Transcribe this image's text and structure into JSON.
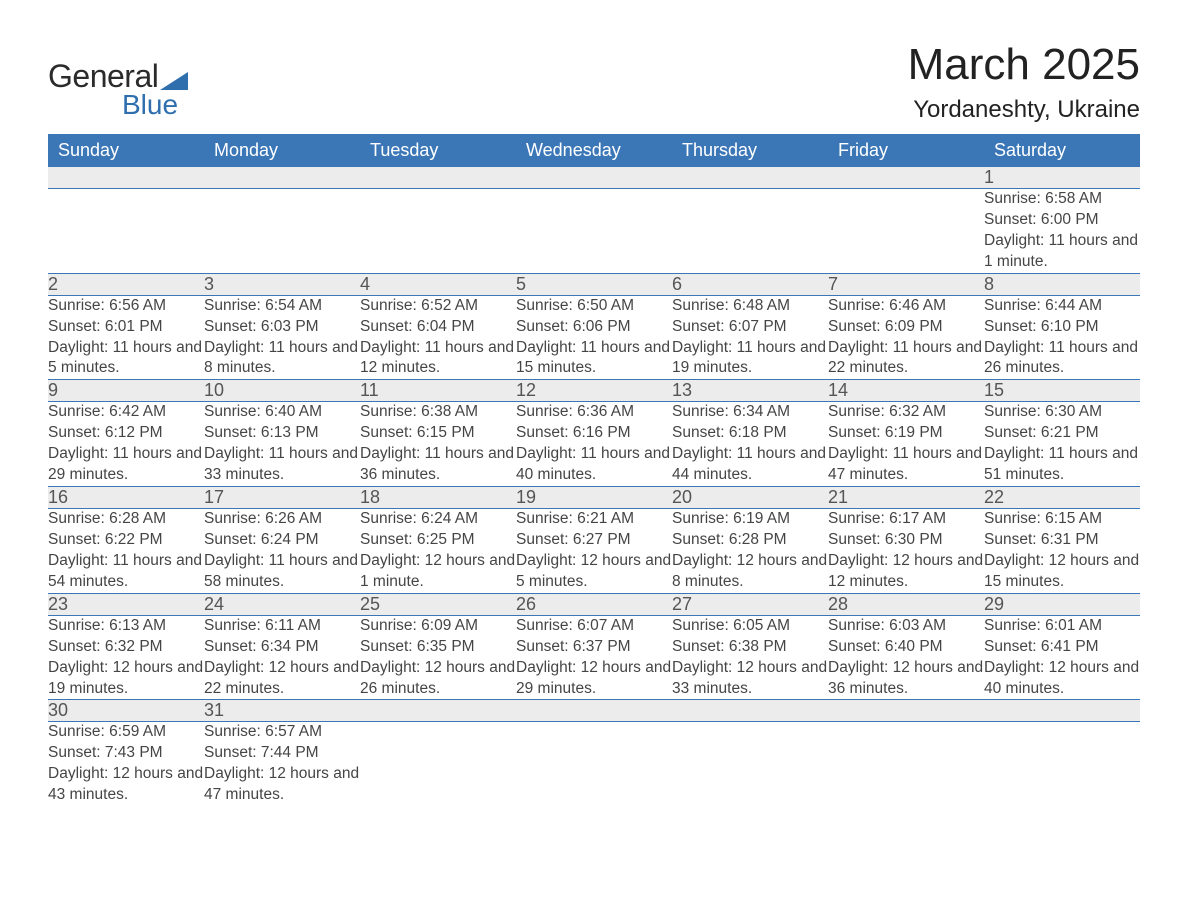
{
  "brand": {
    "general": "General",
    "blue": "Blue"
  },
  "title": "March 2025",
  "location": "Yordaneshty, Ukraine",
  "colors": {
    "header_bg": "#3b77b7",
    "header_text": "#ffffff",
    "daynum_bg": "#ececec",
    "row_divider": "#3b77b7",
    "body_text": "#454545",
    "logo_blue": "#2f6fae"
  },
  "layout": {
    "columns": 7,
    "weeks": 6,
    "font_family": "Arial",
    "title_fontsize": 44,
    "location_fontsize": 24,
    "weekday_fontsize": 18,
    "daynum_fontsize": 18,
    "detail_fontsize": 15.5
  },
  "weekdays": [
    "Sunday",
    "Monday",
    "Tuesday",
    "Wednesday",
    "Thursday",
    "Friday",
    "Saturday"
  ],
  "weeks": [
    [
      null,
      null,
      null,
      null,
      null,
      null,
      {
        "n": "1",
        "sr": "6:58 AM",
        "ss": "6:00 PM",
        "dl": "11 hours and 1 minute."
      }
    ],
    [
      {
        "n": "2",
        "sr": "6:56 AM",
        "ss": "6:01 PM",
        "dl": "11 hours and 5 minutes."
      },
      {
        "n": "3",
        "sr": "6:54 AM",
        "ss": "6:03 PM",
        "dl": "11 hours and 8 minutes."
      },
      {
        "n": "4",
        "sr": "6:52 AM",
        "ss": "6:04 PM",
        "dl": "11 hours and 12 minutes."
      },
      {
        "n": "5",
        "sr": "6:50 AM",
        "ss": "6:06 PM",
        "dl": "11 hours and 15 minutes."
      },
      {
        "n": "6",
        "sr": "6:48 AM",
        "ss": "6:07 PM",
        "dl": "11 hours and 19 minutes."
      },
      {
        "n": "7",
        "sr": "6:46 AM",
        "ss": "6:09 PM",
        "dl": "11 hours and 22 minutes."
      },
      {
        "n": "8",
        "sr": "6:44 AM",
        "ss": "6:10 PM",
        "dl": "11 hours and 26 minutes."
      }
    ],
    [
      {
        "n": "9",
        "sr": "6:42 AM",
        "ss": "6:12 PM",
        "dl": "11 hours and 29 minutes."
      },
      {
        "n": "10",
        "sr": "6:40 AM",
        "ss": "6:13 PM",
        "dl": "11 hours and 33 minutes."
      },
      {
        "n": "11",
        "sr": "6:38 AM",
        "ss": "6:15 PM",
        "dl": "11 hours and 36 minutes."
      },
      {
        "n": "12",
        "sr": "6:36 AM",
        "ss": "6:16 PM",
        "dl": "11 hours and 40 minutes."
      },
      {
        "n": "13",
        "sr": "6:34 AM",
        "ss": "6:18 PM",
        "dl": "11 hours and 44 minutes."
      },
      {
        "n": "14",
        "sr": "6:32 AM",
        "ss": "6:19 PM",
        "dl": "11 hours and 47 minutes."
      },
      {
        "n": "15",
        "sr": "6:30 AM",
        "ss": "6:21 PM",
        "dl": "11 hours and 51 minutes."
      }
    ],
    [
      {
        "n": "16",
        "sr": "6:28 AM",
        "ss": "6:22 PM",
        "dl": "11 hours and 54 minutes."
      },
      {
        "n": "17",
        "sr": "6:26 AM",
        "ss": "6:24 PM",
        "dl": "11 hours and 58 minutes."
      },
      {
        "n": "18",
        "sr": "6:24 AM",
        "ss": "6:25 PM",
        "dl": "12 hours and 1 minute."
      },
      {
        "n": "19",
        "sr": "6:21 AM",
        "ss": "6:27 PM",
        "dl": "12 hours and 5 minutes."
      },
      {
        "n": "20",
        "sr": "6:19 AM",
        "ss": "6:28 PM",
        "dl": "12 hours and 8 minutes."
      },
      {
        "n": "21",
        "sr": "6:17 AM",
        "ss": "6:30 PM",
        "dl": "12 hours and 12 minutes."
      },
      {
        "n": "22",
        "sr": "6:15 AM",
        "ss": "6:31 PM",
        "dl": "12 hours and 15 minutes."
      }
    ],
    [
      {
        "n": "23",
        "sr": "6:13 AM",
        "ss": "6:32 PM",
        "dl": "12 hours and 19 minutes."
      },
      {
        "n": "24",
        "sr": "6:11 AM",
        "ss": "6:34 PM",
        "dl": "12 hours and 22 minutes."
      },
      {
        "n": "25",
        "sr": "6:09 AM",
        "ss": "6:35 PM",
        "dl": "12 hours and 26 minutes."
      },
      {
        "n": "26",
        "sr": "6:07 AM",
        "ss": "6:37 PM",
        "dl": "12 hours and 29 minutes."
      },
      {
        "n": "27",
        "sr": "6:05 AM",
        "ss": "6:38 PM",
        "dl": "12 hours and 33 minutes."
      },
      {
        "n": "28",
        "sr": "6:03 AM",
        "ss": "6:40 PM",
        "dl": "12 hours and 36 minutes."
      },
      {
        "n": "29",
        "sr": "6:01 AM",
        "ss": "6:41 PM",
        "dl": "12 hours and 40 minutes."
      }
    ],
    [
      {
        "n": "30",
        "sr": "6:59 AM",
        "ss": "7:43 PM",
        "dl": "12 hours and 43 minutes."
      },
      {
        "n": "31",
        "sr": "6:57 AM",
        "ss": "7:44 PM",
        "dl": "12 hours and 47 minutes."
      },
      null,
      null,
      null,
      null,
      null
    ]
  ],
  "labels": {
    "sunrise": "Sunrise: ",
    "sunset": "Sunset: ",
    "daylight": "Daylight: "
  }
}
